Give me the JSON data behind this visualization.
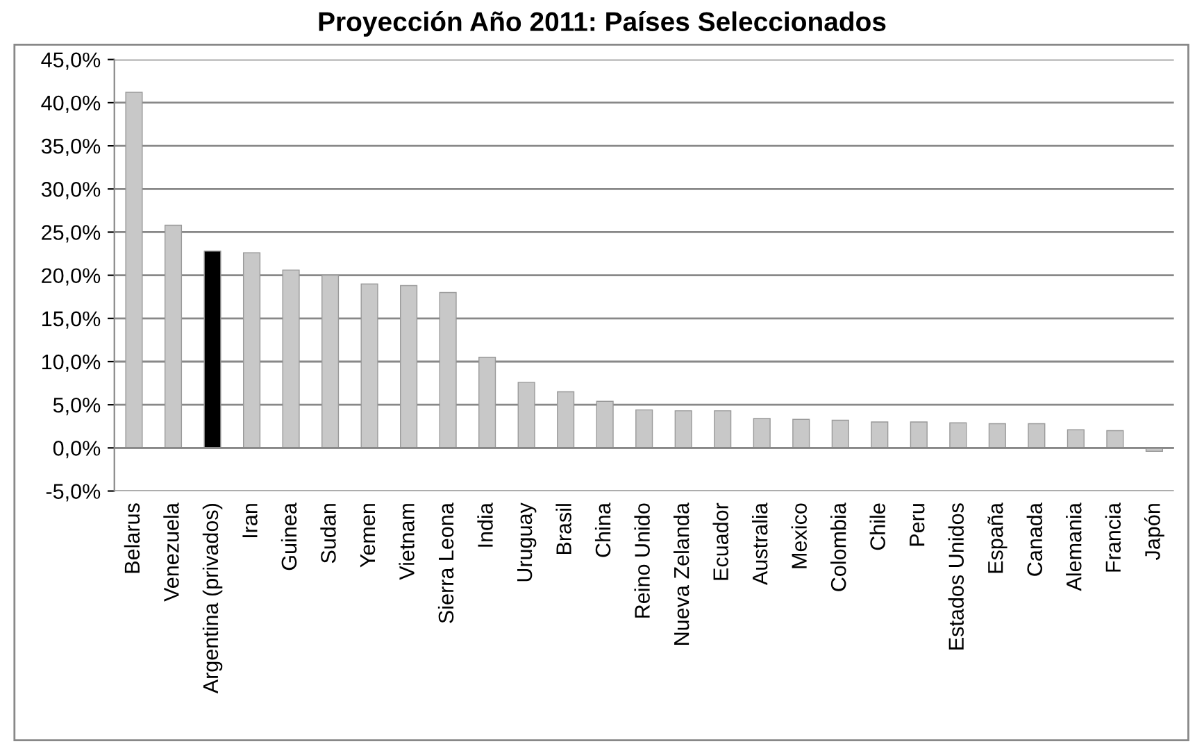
{
  "chart_data": {
    "type": "bar",
    "title": "Proyección Año 2011: Países Seleccionados",
    "categories": [
      "Belarus",
      "Venezuela",
      "Argentina (privados)",
      "Iran",
      "Guinea",
      "Sudan",
      "Yemen",
      "Vietnam",
      "Sierra Leona",
      "India",
      "Uruguay",
      "Brasil",
      "China",
      "Reino Unido",
      "Nueva Zelanda",
      "Ecuador",
      "Australia",
      "Mexico",
      "Colombia",
      "Chile",
      "Peru",
      "Estados Unidos",
      "España",
      "Canada",
      "Alemania",
      "Francia",
      "Japón"
    ],
    "values": [
      41.2,
      25.8,
      22.8,
      22.6,
      20.6,
      20.0,
      19.0,
      18.8,
      18.0,
      10.5,
      7.6,
      6.5,
      5.4,
      4.4,
      4.3,
      4.3,
      3.4,
      3.3,
      3.2,
      3.0,
      3.0,
      2.9,
      2.8,
      2.8,
      2.1,
      2.0,
      -0.4
    ],
    "colors": [
      "#c8c8c8",
      "#c8c8c8",
      "#000000",
      "#c8c8c8",
      "#c8c8c8",
      "#c8c8c8",
      "#c8c8c8",
      "#c8c8c8",
      "#c8c8c8",
      "#c8c8c8",
      "#c8c8c8",
      "#c8c8c8",
      "#c8c8c8",
      "#c8c8c8",
      "#c8c8c8",
      "#c8c8c8",
      "#c8c8c8",
      "#c8c8c8",
      "#c8c8c8",
      "#c8c8c8",
      "#c8c8c8",
      "#c8c8c8",
      "#c8c8c8",
      "#c8c8c8",
      "#c8c8c8",
      "#c8c8c8",
      "#c8c8c8"
    ],
    "ylim": [
      -5,
      45
    ],
    "yticks": [
      {
        "value": -5,
        "label": "-5,0%"
      },
      {
        "value": 0,
        "label": "0,0%"
      },
      {
        "value": 5,
        "label": "5,0%"
      },
      {
        "value": 10,
        "label": "10,0%"
      },
      {
        "value": 15,
        "label": "15,0%"
      },
      {
        "value": 20,
        "label": "20,0%"
      },
      {
        "value": 25,
        "label": "25,0%"
      },
      {
        "value": 30,
        "label": "30,0%"
      },
      {
        "value": 35,
        "label": "35,0%"
      },
      {
        "value": 40,
        "label": "40,0%"
      },
      {
        "value": 45,
        "label": "45,0%"
      }
    ],
    "grid": "y"
  }
}
